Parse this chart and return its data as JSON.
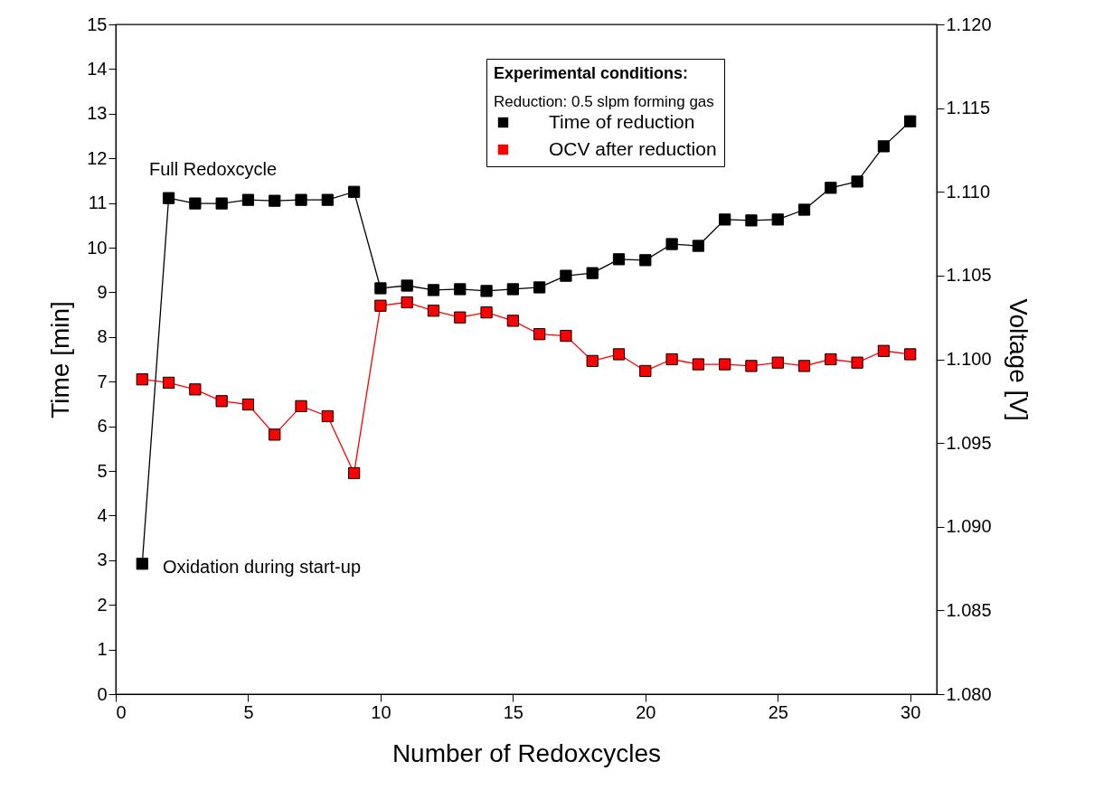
{
  "chart_data": {
    "type": "line",
    "xlabel": "Number of Redoxcycles",
    "ylabel": "Time [min]",
    "y2label": "Voltage [V]",
    "legend_title": "Experimental conditions:",
    "legend": "top right",
    "marker": "square",
    "line_style": "solid",
    "grid": false,
    "x": [
      1,
      2,
      3,
      4,
      5,
      6,
      7,
      8,
      9,
      10,
      11,
      12,
      13,
      14,
      15,
      16,
      17,
      18,
      19,
      20,
      21,
      22,
      23,
      24,
      25,
      26,
      27,
      28,
      29,
      30
    ],
    "xlim": [
      0,
      31
    ],
    "xticks": [
      0,
      5,
      10,
      15,
      20,
      25,
      30
    ],
    "ylim": [
      0,
      15
    ],
    "yticks": [
      0,
      1,
      2,
      3,
      4,
      5,
      6,
      7,
      8,
      9,
      10,
      11,
      12,
      13,
      14,
      15
    ],
    "y2lim": [
      1.08,
      1.12
    ],
    "y2ticks": [
      {
        "value": 1.08,
        "label": "1.080"
      },
      {
        "value": 1.085,
        "label": "1.085"
      },
      {
        "value": 1.09,
        "label": "1.090"
      },
      {
        "value": 1.095,
        "label": "1.095"
      },
      {
        "value": 1.1,
        "label": "1.100"
      },
      {
        "value": 1.105,
        "label": "1.105"
      },
      {
        "value": 1.11,
        "label": "1.110"
      },
      {
        "value": 1.115,
        "label": "1.115"
      },
      {
        "value": 1.12,
        "label": "1.120"
      }
    ],
    "series": [
      {
        "name": "Time of reduction",
        "color": "#000000",
        "values": [
          2.92,
          11.11,
          10.99,
          10.99,
          11.07,
          11.05,
          11.07,
          11.07,
          11.25,
          9.09,
          9.15,
          9.05,
          9.07,
          9.03,
          9.07,
          9.11,
          9.37,
          9.43,
          9.74,
          9.72,
          10.08,
          10.04,
          10.63,
          10.61,
          10.63,
          10.85,
          11.34,
          11.48,
          12.27,
          12.83
        ]
      },
      {
        "name": "OCV after reduction",
        "color": "#ff0000",
        "axis": "y2",
        "values": [
          1.0988,
          1.0986,
          1.0982,
          1.0975,
          1.0973,
          1.0955,
          1.0972,
          1.0966,
          1.0932,
          1.1032,
          1.1034,
          1.1029,
          1.1025,
          1.1028,
          1.1023,
          1.1015,
          1.1014,
          1.0999,
          1.1003,
          1.0993,
          1.1,
          1.0997,
          1.0997,
          1.0996,
          1.0998,
          1.0996,
          1.1,
          1.0998,
          1.1005,
          1.1003
        ]
      }
    ],
    "annotations": [
      "Reduction: 0.5 slpm forming gas",
      "Full Redoxcycle",
      "Oxidation during start-up"
    ]
  }
}
